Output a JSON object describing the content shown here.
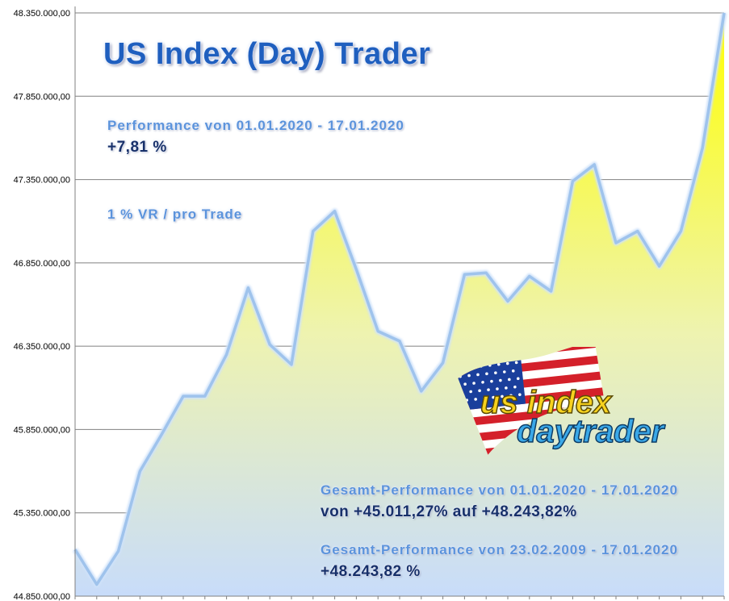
{
  "header": {
    "title": "US Index (Day) Trader",
    "period_label": "Performance  von  01.01.2020 - 17.01.2020",
    "period_value": "+7,81 %",
    "risk_label": "1 % VR / pro Trade"
  },
  "summary": {
    "total_1_label": "Gesamt-Performance  von  01.01.2020 - 17.01.2020",
    "total_1_value": "von +45.011,27% auf  +48.243,82%",
    "total_2_label": "Gesamt-Performance  von  23.02.2009 - 17.01.2020",
    "total_2_value": "+48.243,82 %"
  },
  "logo": {
    "line1": "us index",
    "line2": "daytrader"
  },
  "colors": {
    "fill_top": "#ffff00",
    "fill_bottom": "#c8dcfa",
    "line": "#9fc3ec",
    "grid": "#808080",
    "title": "#1f5fbf"
  },
  "chart_data": {
    "type": "area",
    "title": "",
    "xlabel": "",
    "ylabel": "",
    "ylim": [
      44850000,
      48350000
    ],
    "yticks": [
      44850000,
      45350000,
      45850000,
      46350000,
      46850000,
      47350000,
      47850000,
      48350000
    ],
    "ytick_labels": [
      "44.850.000,00",
      "45.350.000,00",
      "45.850.000,00",
      "46.350.000,00",
      "46.850.000,00",
      "47.350.000,00",
      "47.850.000,00",
      "48.350.000,00"
    ],
    "grid": true,
    "legend": "none",
    "series": [
      {
        "values": [
          45130000,
          44920000,
          45120000,
          45600000,
          45820000,
          46050000,
          46050000,
          46300000,
          46700000,
          46360000,
          46240000,
          47040000,
          47160000,
          46810000,
          46440000,
          46380000,
          46080000,
          46250000,
          46780000,
          46790000,
          46620000,
          46770000,
          46680000,
          47340000,
          47440000,
          46970000,
          47040000,
          46830000,
          47040000,
          47540000,
          48350000
        ]
      }
    ]
  }
}
